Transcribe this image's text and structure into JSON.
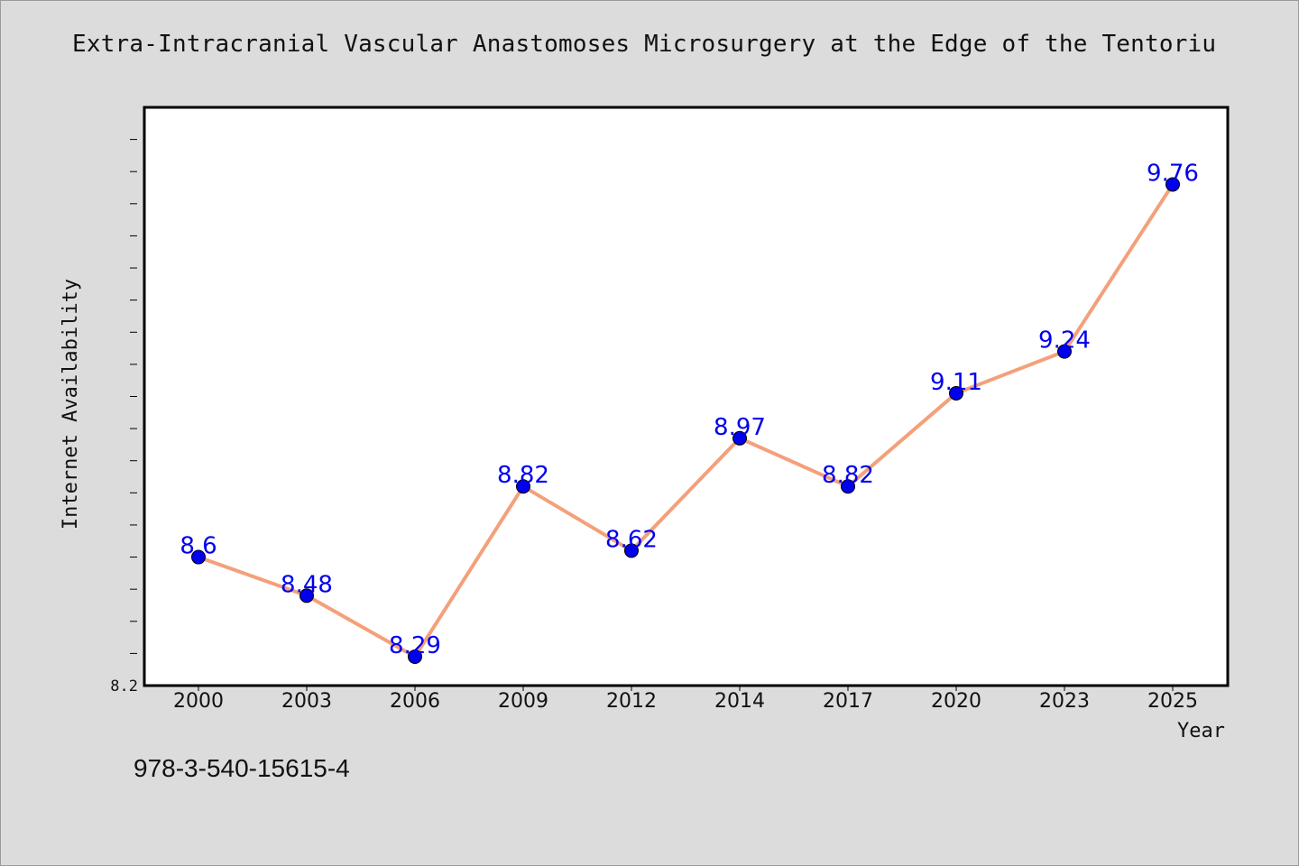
{
  "chart_data": {
    "type": "line",
    "title": "Extra-Intracranial Vascular Anastomoses Microsurgery at the Edge of the Tentoriu",
    "xlabel": "Year",
    "ylabel": "Internet Availability",
    "categories": [
      "2000",
      "2003",
      "2006",
      "2009",
      "2012",
      "2014",
      "2017",
      "2020",
      "2023",
      "2025"
    ],
    "series": [
      {
        "values": [
          8.6,
          8.48,
          8.29,
          8.82,
          8.62,
          8.97,
          8.82,
          9.11,
          9.24,
          9.76
        ]
      }
    ],
    "data_labels": [
      "8.6",
      "8.48",
      "8.29",
      "8.82",
      "8.62",
      "8.97",
      "8.82",
      "9.11",
      "9.24",
      "9.76"
    ],
    "ylim": [
      8.2,
      10.0
    ],
    "y_tick_label": "8.2",
    "grid": false,
    "line_color": "#f4a07a",
    "marker_color": "#0000ee",
    "label_color": "#0000ee"
  },
  "footer": {
    "isbn": "978-3-540-15615-4"
  }
}
